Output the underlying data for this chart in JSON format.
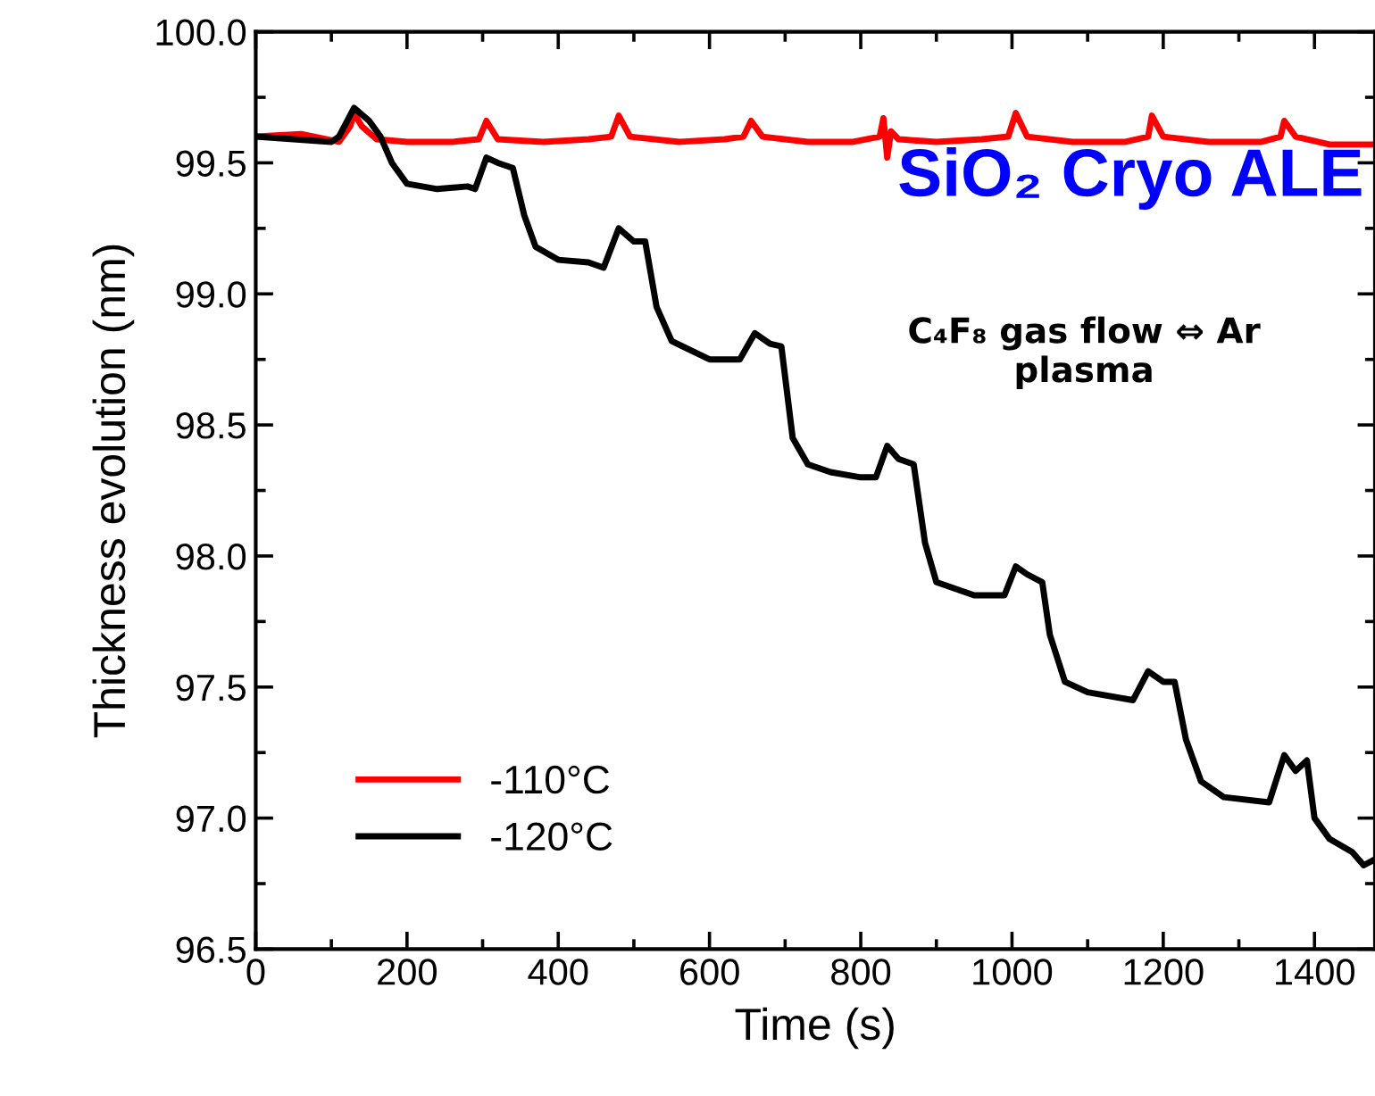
{
  "chart_data": {
    "type": "line",
    "xlabel": "Time (s)",
    "ylabel": "Thickness evolution (nm)",
    "xlim": [
      0,
      1480
    ],
    "ylim": [
      96.5,
      100.0
    ],
    "xticks": [
      0,
      200,
      400,
      600,
      800,
      1000,
      1200,
      1400
    ],
    "yticks": [
      {
        "value": 96.5,
        "label": "96.5"
      },
      {
        "value": 97.0,
        "label": "97.0"
      },
      {
        "value": 97.5,
        "label": "97.5"
      },
      {
        "value": 98.0,
        "label": "98.0"
      },
      {
        "value": 98.5,
        "label": "98.5"
      },
      {
        "value": 99.0,
        "label": "99.0"
      },
      {
        "value": 99.5,
        "label": "99.5"
      },
      {
        "value": 100.0,
        "label": "100.0"
      }
    ],
    "grid": false,
    "legend": "bottom left",
    "marker": "none",
    "line_style": "solid",
    "annotations": [
      "SiO₂ Cryo ALE",
      "C₄F₈ gas flow ⇔ Ar plasma"
    ],
    "series": [
      {
        "name": "-110°C",
        "color": "#ff0000",
        "x": [
          0,
          60,
          110,
          125,
          130,
          140,
          160,
          200,
          260,
          295,
          305,
          320,
          380,
          440,
          470,
          480,
          495,
          560,
          620,
          645,
          655,
          670,
          730,
          790,
          825,
          830,
          835,
          840,
          850,
          900,
          960,
          995,
          1005,
          1020,
          1080,
          1150,
          1180,
          1185,
          1200,
          1260,
          1330,
          1355,
          1360,
          1375,
          1420,
          1478
        ],
        "values": [
          99.6,
          99.61,
          99.58,
          99.64,
          99.69,
          99.64,
          99.59,
          99.58,
          99.58,
          99.59,
          99.66,
          99.59,
          99.58,
          99.59,
          99.6,
          99.68,
          99.6,
          99.58,
          99.59,
          99.6,
          99.66,
          99.6,
          99.58,
          99.58,
          99.6,
          99.67,
          99.52,
          99.62,
          99.59,
          99.58,
          99.59,
          99.6,
          99.69,
          99.6,
          99.58,
          99.58,
          99.6,
          99.68,
          99.6,
          99.58,
          99.58,
          99.6,
          99.66,
          99.6,
          99.57,
          99.57
        ]
      },
      {
        "name": "-120°C",
        "color": "#000000",
        "x": [
          0,
          100,
          110,
          130,
          150,
          165,
          180,
          200,
          240,
          280,
          290,
          305,
          320,
          340,
          355,
          370,
          400,
          440,
          460,
          480,
          500,
          515,
          530,
          550,
          600,
          640,
          660,
          680,
          695,
          710,
          730,
          760,
          800,
          820,
          835,
          850,
          870,
          885,
          900,
          950,
          990,
          1005,
          1020,
          1040,
          1050,
          1070,
          1100,
          1160,
          1180,
          1200,
          1215,
          1230,
          1250,
          1280,
          1340,
          1360,
          1375,
          1390,
          1400,
          1420,
          1450,
          1465,
          1478
        ],
        "values": [
          99.6,
          99.58,
          99.6,
          99.71,
          99.66,
          99.6,
          99.5,
          99.42,
          99.4,
          99.41,
          99.4,
          99.52,
          99.5,
          99.48,
          99.3,
          99.18,
          99.13,
          99.12,
          99.1,
          99.25,
          99.2,
          99.2,
          98.95,
          98.82,
          98.75,
          98.75,
          98.85,
          98.81,
          98.8,
          98.45,
          98.35,
          98.32,
          98.3,
          98.3,
          98.42,
          98.37,
          98.35,
          98.05,
          97.9,
          97.85,
          97.85,
          97.96,
          97.93,
          97.9,
          97.7,
          97.52,
          97.48,
          97.45,
          97.56,
          97.52,
          97.52,
          97.3,
          97.14,
          97.08,
          97.06,
          97.24,
          97.18,
          97.22,
          97.0,
          96.92,
          96.87,
          96.82,
          96.84
        ]
      }
    ]
  }
}
